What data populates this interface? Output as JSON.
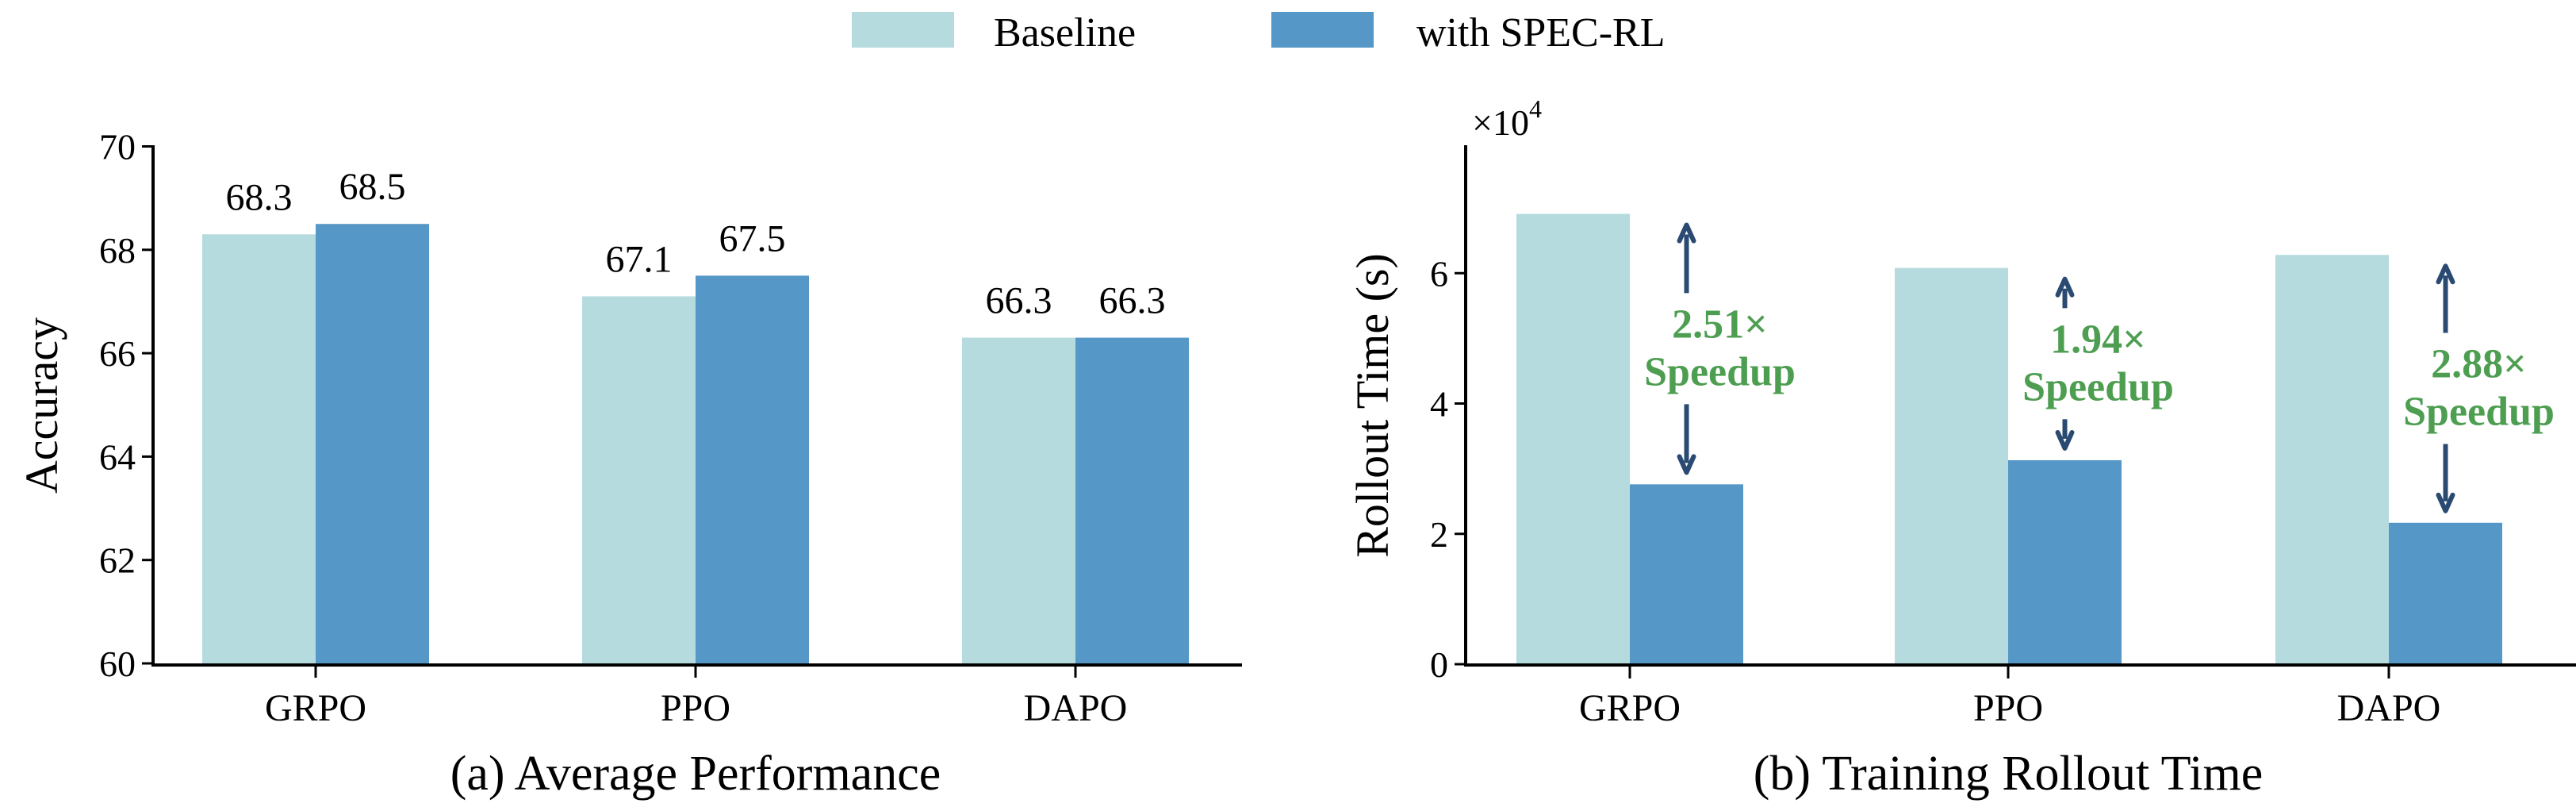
{
  "legend": {
    "items": [
      {
        "label": "Baseline",
        "color": "#B5DBDF"
      },
      {
        "label": "with SPEC-RL",
        "color": "#5597C6"
      }
    ]
  },
  "colors": {
    "baseline": "#B5DBDF",
    "spec": "#5597C6",
    "arrow": "#2B4A72",
    "speedup_text": "#4E9E52",
    "axis": "#000000"
  },
  "chart_data": [
    {
      "type": "bar",
      "title": "(a) Average Performance",
      "xlabel": "",
      "ylabel": "Accuracy",
      "categories": [
        "GRPO",
        "PPO",
        "DAPO"
      ],
      "series": [
        {
          "name": "Baseline",
          "values": [
            68.3,
            67.1,
            66.3
          ]
        },
        {
          "name": "with SPEC-RL",
          "values": [
            68.5,
            67.5,
            66.3
          ]
        }
      ],
      "data_labels": [
        [
          "68.3",
          "67.1",
          "66.3"
        ],
        [
          "68.5",
          "67.5",
          "66.3"
        ]
      ],
      "ylim": [
        60,
        70
      ],
      "yticks": [
        60,
        62,
        64,
        66,
        68,
        70
      ],
      "ytick_labels": [
        "60",
        "62",
        "64",
        "66",
        "68",
        "70"
      ],
      "grid": false,
      "legend_position": "top-center"
    },
    {
      "type": "bar",
      "title": "(b) Training Rollout Time",
      "xlabel": "",
      "ylabel": "Rollout Time (s)",
      "y_scale_label": "×10",
      "y_scale_exponent": "4",
      "categories": [
        "GRPO",
        "PPO",
        "DAPO"
      ],
      "series": [
        {
          "name": "Baseline",
          "values": [
            6.91,
            6.08,
            6.28
          ]
        },
        {
          "name": "with SPEC-RL",
          "values": [
            2.76,
            3.13,
            2.17
          ]
        }
      ],
      "units_multiplier": 10000,
      "ylim": [
        0,
        8
      ],
      "yticks": [
        0,
        2,
        4,
        6
      ],
      "ytick_labels": [
        "0",
        "2",
        "4",
        "6"
      ],
      "annotations": [
        {
          "category": "GRPO",
          "value": "2.51×",
          "text": "Speedup"
        },
        {
          "category": "PPO",
          "value": "1.94×",
          "text": "Speedup"
        },
        {
          "category": "DAPO",
          "value": "2.88×",
          "text": "Speedup"
        }
      ],
      "grid": false,
      "legend_position": "top-center"
    }
  ]
}
